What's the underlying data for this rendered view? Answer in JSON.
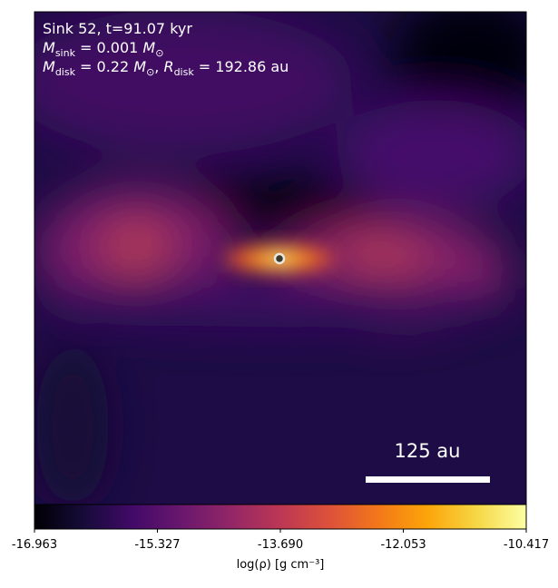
{
  "chart_data": {
    "type": "image",
    "annotation_lines": [
      [
        {
          "text": "Sink 52, t=91.07 kyr"
        }
      ],
      [
        {
          "text": "M",
          "italic": true
        },
        {
          "text": "sink",
          "sub": true
        },
        {
          "text": " = 0.001 "
        },
        {
          "text": "M",
          "italic": true
        },
        {
          "text": "⊙",
          "sub": true
        }
      ],
      [
        {
          "text": "M",
          "italic": true
        },
        {
          "text": "disk",
          "sub": true
        },
        {
          "text": " = 0.22 "
        },
        {
          "text": "M",
          "italic": true
        },
        {
          "text": "⊙",
          "sub": true
        },
        {
          "text": ", "
        },
        {
          "text": "R",
          "italic": true
        },
        {
          "text": "disk",
          "sub": true
        },
        {
          "text": " = 192.86 au"
        }
      ]
    ],
    "scale_bar_label": "125 au",
    "colormap": "inferno",
    "colorbar": {
      "label": "log(ρ) [g cm⁻³]",
      "clim": [
        -16.963,
        -10.417
      ],
      "ticks": [
        -16.963,
        -15.327,
        {
          "value": -13.69,
          "label": "-13.690"
        },
        -12.053,
        -10.417
      ]
    }
  }
}
